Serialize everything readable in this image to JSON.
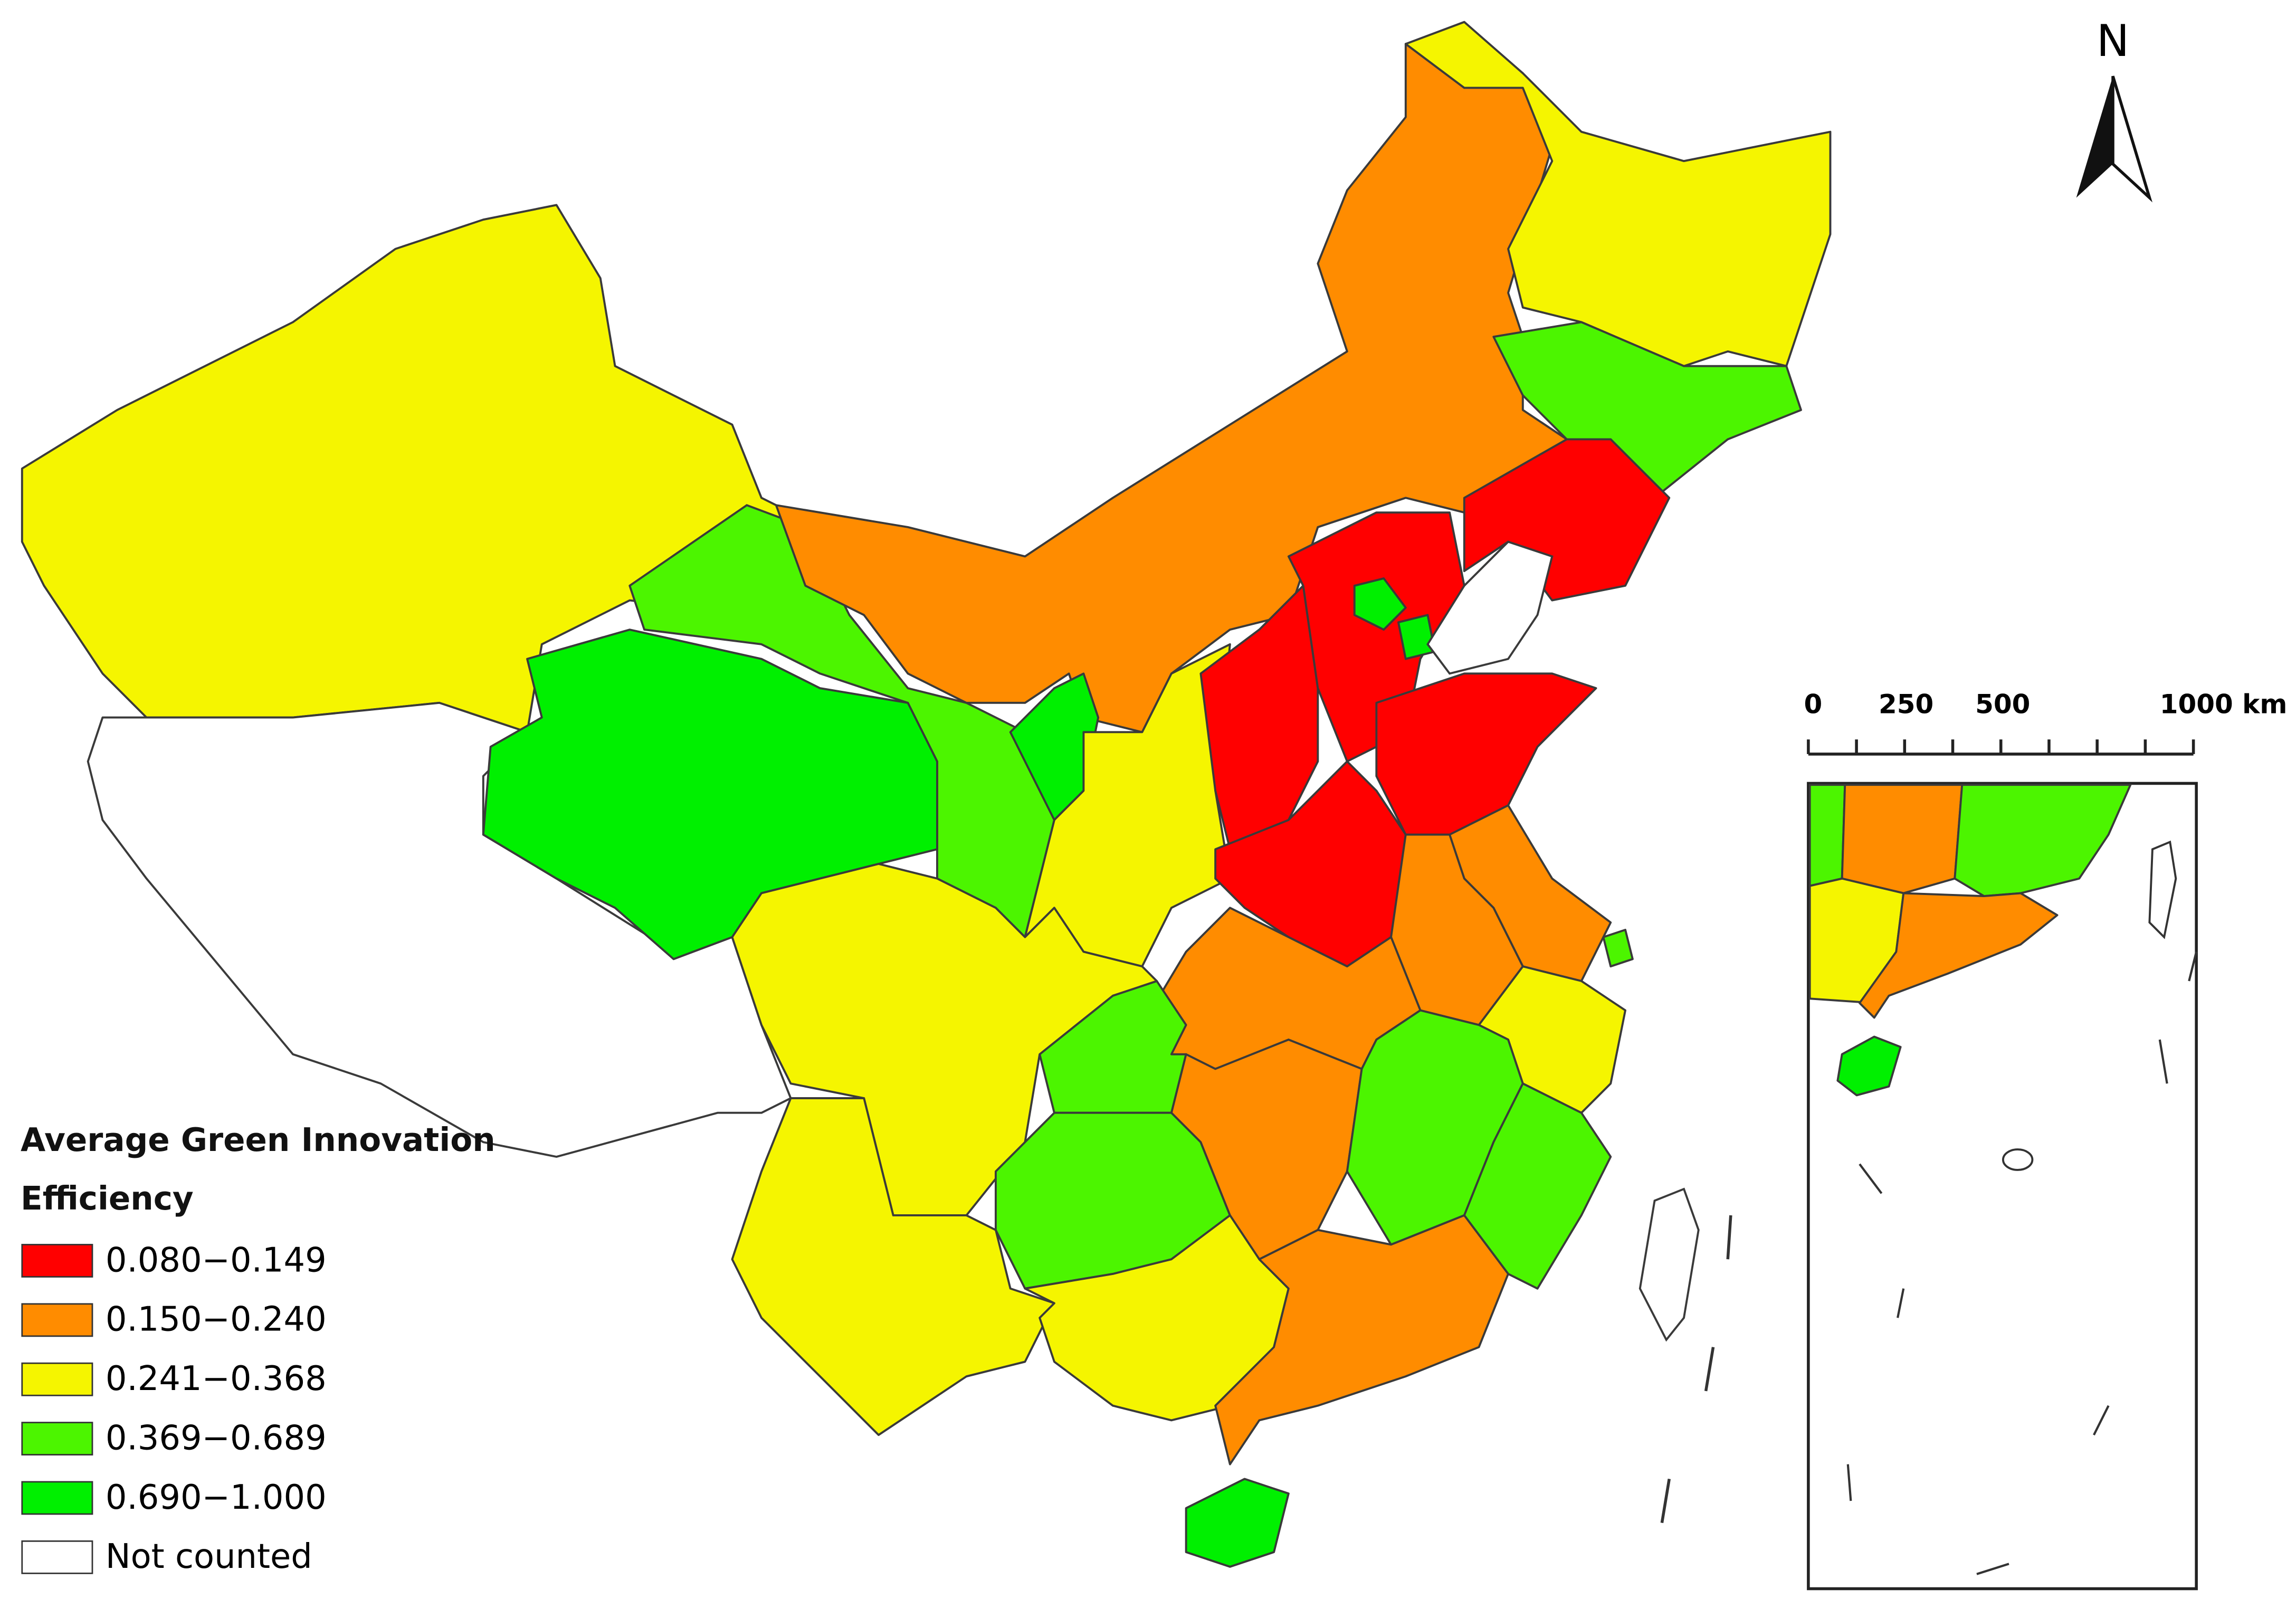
{
  "legend": {
    "title": "Average Green Innovation Efficiency",
    "items": [
      {
        "label": "0.080−0.149",
        "color": "#ff0000"
      },
      {
        "label": "0.150−0.240",
        "color": "#ff8c00"
      },
      {
        "label": "0.241−0.368",
        "color": "#f5f500"
      },
      {
        "label": "0.369−0.689",
        "color": "#4cf500"
      },
      {
        "label": "0.690−1.000",
        "color": "#00f000"
      },
      {
        "label": "Not counted",
        "color": "#ffffff"
      }
    ]
  },
  "north_arrow": {
    "label": "N"
  },
  "scale_bar": {
    "labels": [
      "0",
      "250",
      "500",
      "1000 km"
    ]
  }
}
